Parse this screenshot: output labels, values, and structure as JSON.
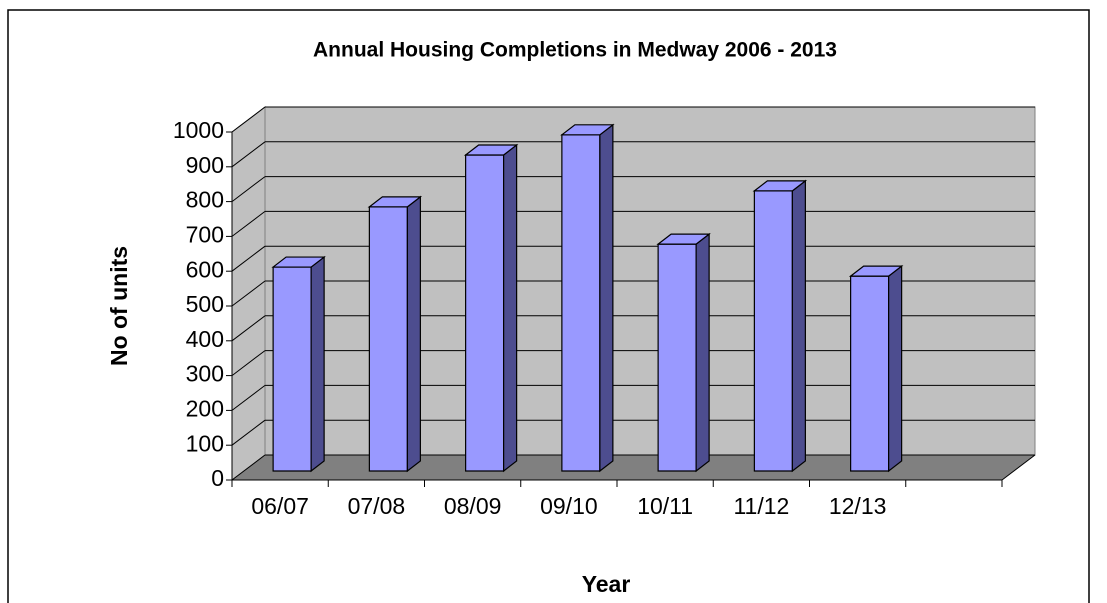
{
  "chart_data": {
    "type": "bar3d",
    "title": "Annual Housing Completions in Medway 2006 - 2013",
    "x_label": "Year",
    "y_label": "No of units",
    "categories": [
      "06/07",
      "07/08",
      "08/09",
      "09/10",
      "10/11",
      "11/12",
      "12/13",
      null
    ],
    "values": [
      586,
      759,
      908,
      966,
      652,
      805,
      560,
      null
    ],
    "color": "#9999ff",
    "ylim": [
      0,
      1000
    ],
    "yticks": [
      0,
      100,
      200,
      300,
      400,
      500,
      600,
      700,
      800,
      900,
      1000
    ],
    "grid": true
  }
}
